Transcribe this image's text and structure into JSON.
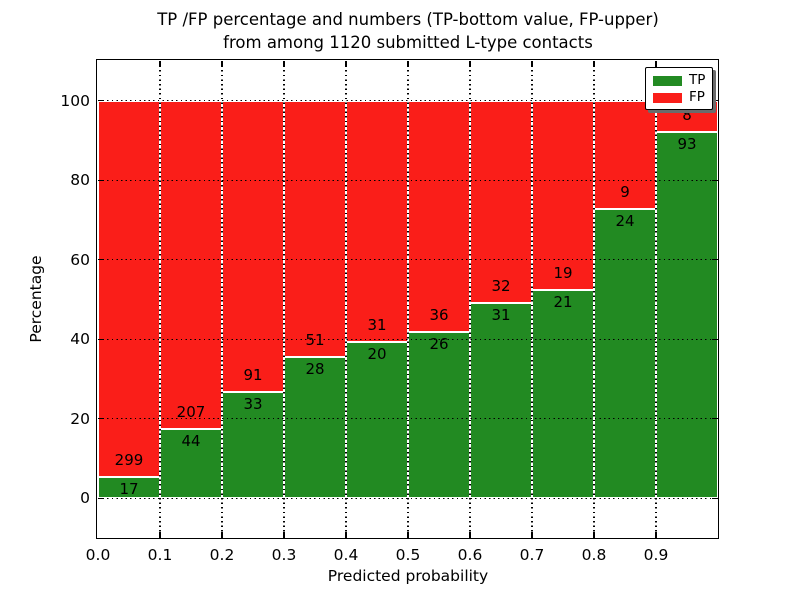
{
  "chart_data": {
    "type": "bar",
    "stacked": true,
    "title_lines": [
      "TP /FP percentage and numbers (TP-bottom value, FP-upper)",
      "from among 1120 submitted L-type contacts"
    ],
    "xlabel": "Predicted probability",
    "ylabel": "Percentage",
    "xlim": [
      0.0,
      1.0
    ],
    "ylim": [
      -10,
      110
    ],
    "x_tick_labels": [
      "0.0",
      "0.1",
      "0.2",
      "0.3",
      "0.4",
      "0.5",
      "0.6",
      "0.7",
      "0.8",
      "0.9"
    ],
    "y_tick_values": [
      0,
      20,
      40,
      60,
      80,
      100
    ],
    "grid": {
      "style": "dotted",
      "color": "#000000",
      "on": true
    },
    "legend": [
      {
        "label": "TP",
        "color": "#228a22"
      },
      {
        "label": "FP",
        "color": "#fa1e19"
      }
    ],
    "colors": {
      "tp": "#228a22",
      "fp": "#fa1e19",
      "bar_edge": "#ffffff",
      "background": "#ffffff"
    },
    "bins": [
      {
        "range": [
          0.0,
          0.1
        ],
        "tp": 17,
        "fp": 299
      },
      {
        "range": [
          0.1,
          0.2
        ],
        "tp": 44,
        "fp": 207
      },
      {
        "range": [
          0.2,
          0.3
        ],
        "tp": 33,
        "fp": 91
      },
      {
        "range": [
          0.3,
          0.4
        ],
        "tp": 28,
        "fp": 51
      },
      {
        "range": [
          0.4,
          0.5
        ],
        "tp": 20,
        "fp": 31
      },
      {
        "range": [
          0.5,
          0.6
        ],
        "tp": 26,
        "fp": 36
      },
      {
        "range": [
          0.6,
          0.7
        ],
        "tp": 31,
        "fp": 32
      },
      {
        "range": [
          0.7,
          0.8
        ],
        "tp": 21,
        "fp": 19
      },
      {
        "range": [
          0.8,
          0.9
        ],
        "tp": 24,
        "fp": 9
      },
      {
        "range": [
          0.9,
          1.0
        ],
        "tp": 93,
        "fp": 8
      }
    ]
  }
}
